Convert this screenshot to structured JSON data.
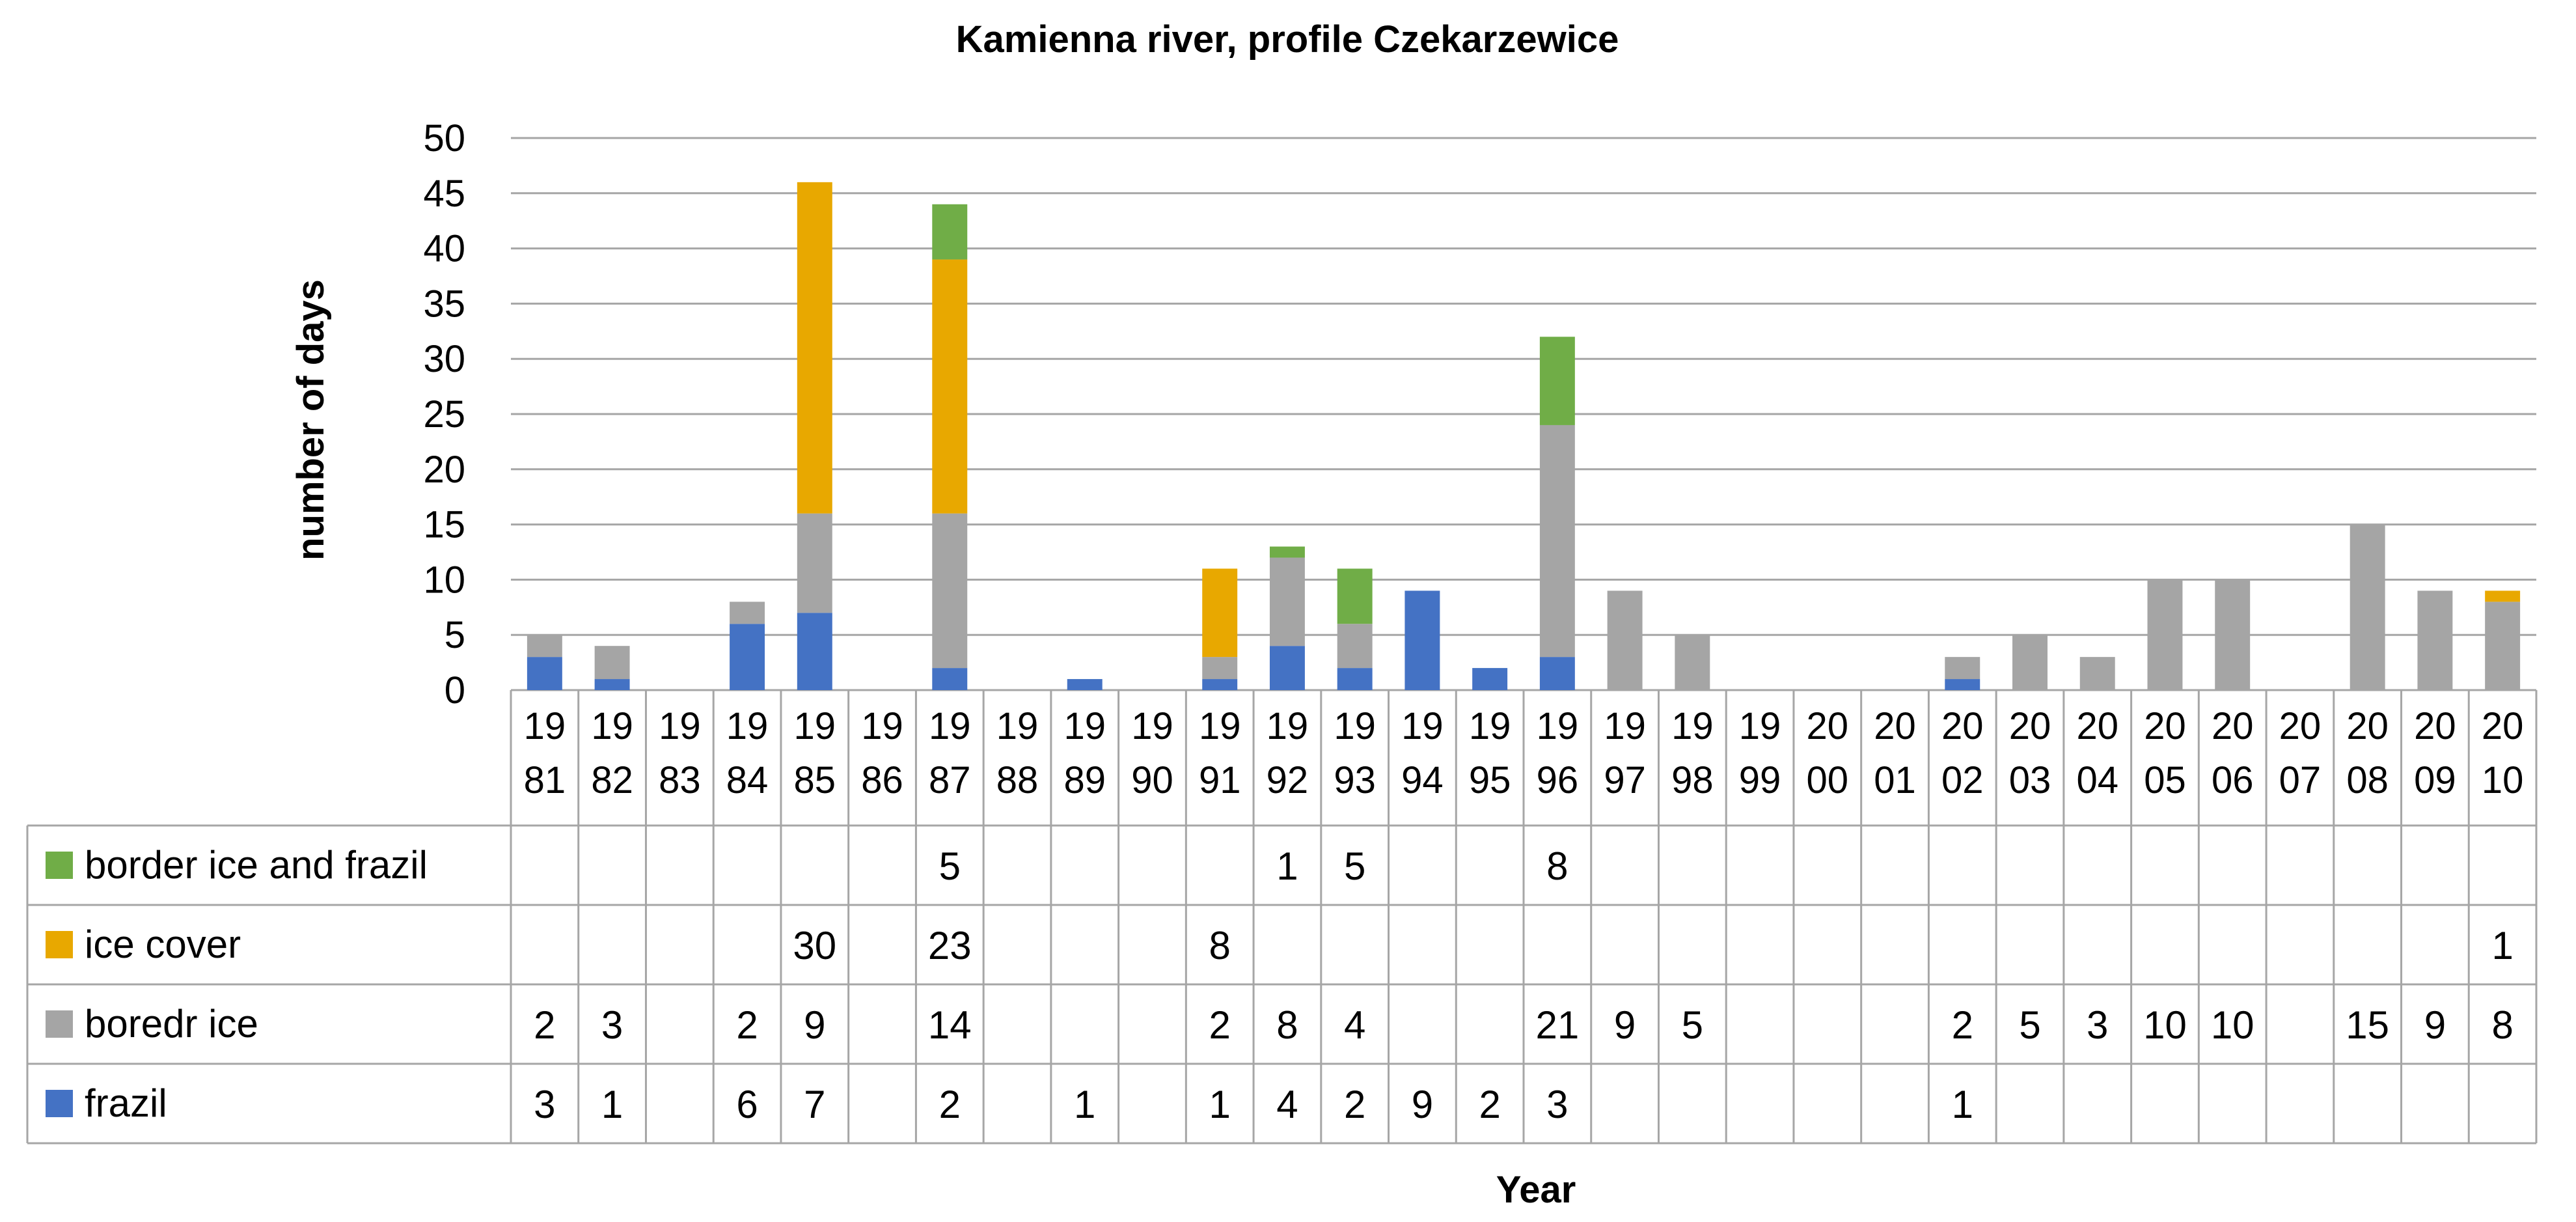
{
  "chart_data": {
    "type": "bar",
    "stacked": true,
    "title": "Kamienna river, profile Czekarzewice",
    "xlabel": "Year",
    "ylabel": "number of days",
    "ylim": [
      0,
      50
    ],
    "yticks": [
      "0",
      "5",
      "10",
      "15",
      "20",
      "25",
      "30",
      "35",
      "40",
      "45",
      "50"
    ],
    "grid": true,
    "legend": "data table rows",
    "categories": [
      [
        "19",
        "81"
      ],
      [
        "19",
        "82"
      ],
      [
        "19",
        "83"
      ],
      [
        "19",
        "84"
      ],
      [
        "19",
        "85"
      ],
      [
        "19",
        "86"
      ],
      [
        "19",
        "87"
      ],
      [
        "19",
        "88"
      ],
      [
        "19",
        "89"
      ],
      [
        "19",
        "90"
      ],
      [
        "19",
        "91"
      ],
      [
        "19",
        "92"
      ],
      [
        "19",
        "93"
      ],
      [
        "19",
        "94"
      ],
      [
        "19",
        "95"
      ],
      [
        "19",
        "96"
      ],
      [
        "19",
        "97"
      ],
      [
        "19",
        "98"
      ],
      [
        "19",
        "99"
      ],
      [
        "20",
        "00"
      ],
      [
        "20",
        "01"
      ],
      [
        "20",
        "02"
      ],
      [
        "20",
        "03"
      ],
      [
        "20",
        "04"
      ],
      [
        "20",
        "05"
      ],
      [
        "20",
        "06"
      ],
      [
        "20",
        "07"
      ],
      [
        "20",
        "08"
      ],
      [
        "20",
        "09"
      ],
      [
        "20",
        "10"
      ]
    ],
    "series": [
      {
        "name": "frazil",
        "color": "#4472C4",
        "values": [
          3,
          1,
          null,
          6,
          7,
          null,
          2,
          null,
          1,
          null,
          1,
          4,
          2,
          9,
          2,
          3,
          null,
          null,
          null,
          null,
          null,
          1,
          null,
          null,
          null,
          null,
          null,
          null,
          null,
          null
        ]
      },
      {
        "name": "boredr ice",
        "color": "#A5A5A5",
        "values": [
          2,
          3,
          null,
          2,
          9,
          null,
          14,
          null,
          null,
          null,
          2,
          8,
          4,
          null,
          null,
          21,
          9,
          5,
          null,
          null,
          null,
          2,
          5,
          3,
          10,
          10,
          null,
          15,
          9,
          8
        ]
      },
      {
        "name": "ice cover",
        "color": "#E8A800",
        "values": [
          null,
          null,
          null,
          null,
          30,
          null,
          23,
          null,
          null,
          null,
          8,
          null,
          null,
          null,
          null,
          null,
          null,
          null,
          null,
          null,
          null,
          null,
          null,
          null,
          null,
          null,
          null,
          null,
          null,
          1
        ]
      },
      {
        "name": "border ice and frazil",
        "color": "#70AD47",
        "values": [
          null,
          null,
          null,
          null,
          null,
          null,
          5,
          null,
          null,
          null,
          null,
          1,
          5,
          null,
          null,
          8,
          null,
          null,
          null,
          null,
          null,
          null,
          null,
          null,
          null,
          null,
          null,
          null,
          null,
          null
        ]
      }
    ],
    "table_row_order": [
      "border ice and frazil",
      "ice cover",
      "boredr ice",
      "frazil"
    ]
  }
}
